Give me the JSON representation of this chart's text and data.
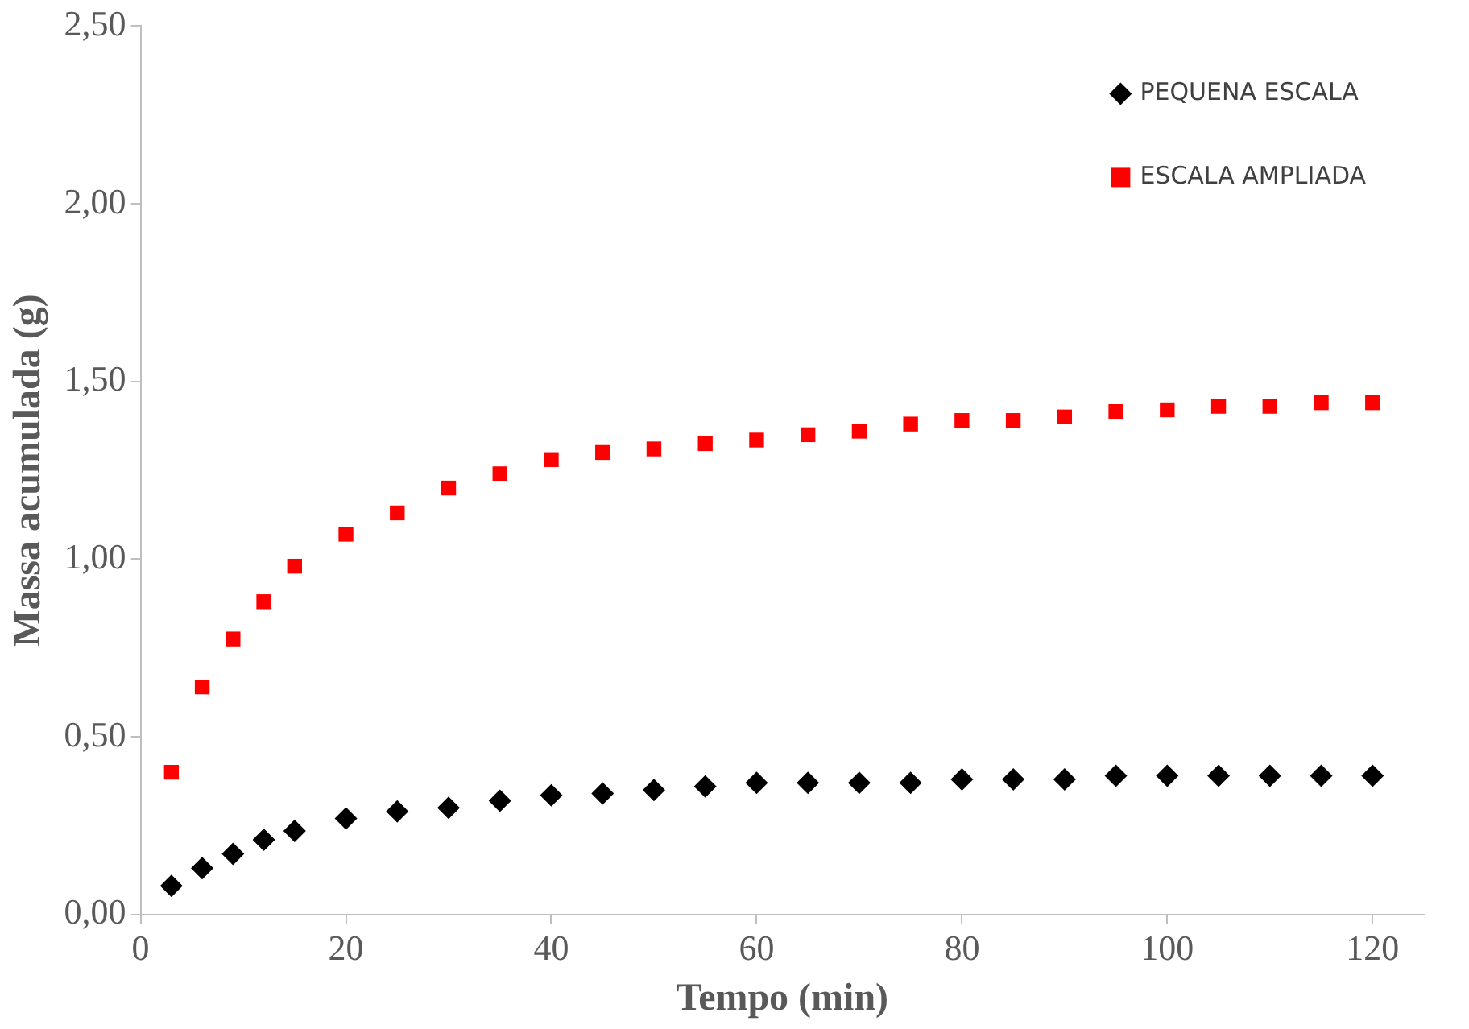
{
  "chart_data": {
    "type": "scatter",
    "xlabel": "Tempo (min)",
    "ylabel": "Massa acumulada (g)",
    "x": [
      3,
      6,
      9,
      12,
      15,
      20,
      25,
      30,
      35,
      40,
      45,
      50,
      55,
      60,
      65,
      70,
      75,
      80,
      85,
      90,
      95,
      100,
      105,
      110,
      115,
      120
    ],
    "series": [
      {
        "name": "PEQUENA ESCALA",
        "color": "#000000",
        "marker": "diamond",
        "values": [
          0.08,
          0.13,
          0.17,
          0.21,
          0.235,
          0.27,
          0.29,
          0.3,
          0.32,
          0.335,
          0.34,
          0.35,
          0.36,
          0.37,
          0.37,
          0.37,
          0.37,
          0.38,
          0.38,
          0.38,
          0.39,
          0.39,
          0.39,
          0.39,
          0.39,
          0.39
        ]
      },
      {
        "name": "ESCALA AMPLIADA",
        "color": "#ff0000",
        "marker": "square",
        "values": [
          0.4,
          0.64,
          0.775,
          0.88,
          0.98,
          1.07,
          1.13,
          1.2,
          1.24,
          1.28,
          1.3,
          1.31,
          1.325,
          1.335,
          1.35,
          1.36,
          1.38,
          1.39,
          1.39,
          1.4,
          1.415,
          1.42,
          1.43,
          1.43,
          1.44,
          1.44
        ]
      }
    ],
    "xlim": [
      0,
      125
    ],
    "xticks": [
      0,
      20,
      40,
      60,
      80,
      100,
      120
    ],
    "ylim": [
      0,
      2.5
    ],
    "yticks": [
      {
        "value": 0,
        "label": "0,00"
      },
      {
        "value": 0.5,
        "label": "0,50"
      },
      {
        "value": 1,
        "label": "1,00"
      },
      {
        "value": 1.5,
        "label": "1,50"
      },
      {
        "value": 2,
        "label": "2,00"
      },
      {
        "value": 2.5,
        "label": "2,50"
      }
    ],
    "grid": false,
    "legend": "top right"
  }
}
